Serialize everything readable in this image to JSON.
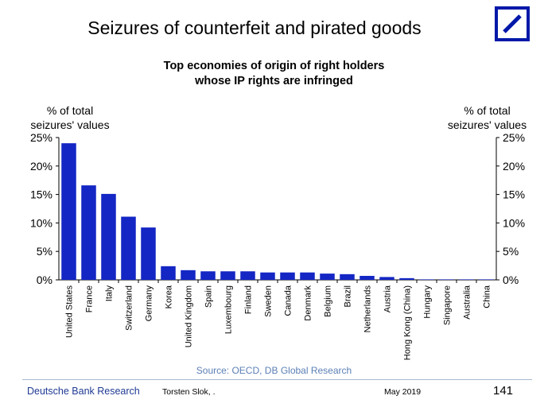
{
  "slide": {
    "title": "Seizures of counterfeit and pirated goods"
  },
  "footer": {
    "source": "Source: OECD, DB Global Research",
    "brand": "Deutsche Bank Research",
    "author": "Torsten Slok, .",
    "date": "May 2019",
    "page": "141"
  },
  "colors": {
    "bar": "#1426c4",
    "brand": "#1f3a93",
    "source": "#5b7fb5"
  },
  "chart_data": {
    "type": "bar",
    "title_line1": "Top economies of origin of right holders",
    "title_line2": "whose IP rights are infringed",
    "ylabel_left_line1": "% of total",
    "ylabel_left_line2": "seizures' values",
    "ylabel_right_line1": "% of total",
    "ylabel_right_line2": "seizures' values",
    "ylim": [
      0,
      25
    ],
    "ytick_values": [
      0,
      5,
      10,
      15,
      20,
      25
    ],
    "ytick_labels": [
      "0%",
      "5%",
      "10%",
      "15%",
      "20%",
      "25%"
    ],
    "grid": false,
    "legend": "none",
    "categories": [
      "United States",
      "France",
      "Italy",
      "Switzerland",
      "Germany",
      "Korea",
      "United Kingdom",
      "Spain",
      "Luxembourg",
      "Finland",
      "Sweden",
      "Canada",
      "Denmark",
      "Belgium",
      "Brazil",
      "Netherlands",
      "Austria",
      "Hong Kong (China)",
      "Hungary",
      "Singapore",
      "Australia",
      "China"
    ],
    "values": [
      24.0,
      16.6,
      15.1,
      11.1,
      9.2,
      2.4,
      1.7,
      1.5,
      1.5,
      1.5,
      1.3,
      1.3,
      1.3,
      1.1,
      1.0,
      0.7,
      0.5,
      0.3,
      0.05,
      0.03,
      0.02,
      0.02
    ]
  }
}
